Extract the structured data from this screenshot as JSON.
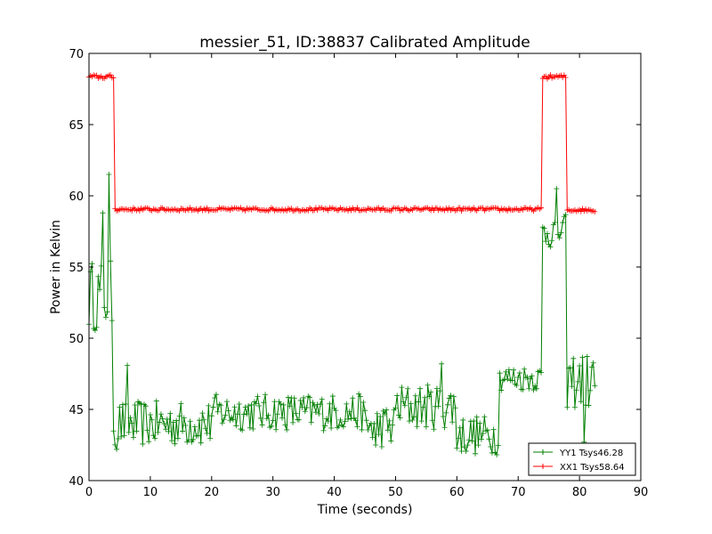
{
  "chart_data": {
    "type": "line",
    "title": "messier_51, ID:38837 Calibrated Amplitude",
    "xlabel": "Time (seconds)",
    "ylabel": "Power in Kelvin",
    "xlim": [
      0,
      90
    ],
    "ylim": [
      40,
      70
    ],
    "xticks": [
      0,
      10,
      20,
      30,
      40,
      50,
      60,
      70,
      80,
      90
    ],
    "yticks": [
      40,
      45,
      50,
      55,
      60,
      65,
      70
    ],
    "grid": false,
    "legend_position": "lower-right",
    "x_step": 0.25,
    "x_end": 82.5,
    "series": [
      {
        "name": "YY1 Tsys46.28",
        "color": "#007f00",
        "marker": "plus",
        "segments": [
          {
            "x_from": 0,
            "x_to": 4,
            "mean": 53.0,
            "spread": 2.5
          },
          {
            "x_from": 4,
            "x_to": 20,
            "mean": 44.0,
            "spread": 1.6
          },
          {
            "x_from": 20,
            "x_to": 45,
            "mean": 44.8,
            "spread": 1.3
          },
          {
            "x_from": 45,
            "x_to": 50,
            "mean": 43.8,
            "spread": 1.5
          },
          {
            "x_from": 50,
            "x_to": 60,
            "mean": 45.2,
            "spread": 1.6
          },
          {
            "x_from": 60,
            "x_to": 67,
            "mean": 43.2,
            "spread": 1.4
          },
          {
            "x_from": 67,
            "x_to": 74,
            "mean": 47.2,
            "spread": 0.9
          },
          {
            "x_from": 74,
            "x_to": 78,
            "mean": 57.5,
            "spread": 1.2
          },
          {
            "x_from": 78,
            "x_to": 82.5,
            "mean": 47.0,
            "spread": 2.0
          }
        ],
        "spikes": [
          {
            "x": 2.25,
            "y": 58.8
          },
          {
            "x": 3.25,
            "y": 61.5
          },
          {
            "x": 4.5,
            "y": 42.2
          },
          {
            "x": 6.25,
            "y": 48.1
          },
          {
            "x": 46.75,
            "y": 42.5
          },
          {
            "x": 57.5,
            "y": 48.2
          },
          {
            "x": 76.25,
            "y": 60.5
          },
          {
            "x": 80.75,
            "y": 42.7
          },
          {
            "x": 81.0,
            "y": 45.3
          }
        ]
      },
      {
        "name": "XX1 Tsys58.64",
        "color": "#ff0000",
        "marker": "plus",
        "segments": [
          {
            "x_from": 0,
            "x_to": 4.25,
            "mean": 68.35,
            "spread": 0.15
          },
          {
            "x_from": 4.25,
            "x_to": 74,
            "mean": 59.05,
            "spread": 0.12
          },
          {
            "x_from": 74,
            "x_to": 78,
            "mean": 68.35,
            "spread": 0.15
          },
          {
            "x_from": 78,
            "x_to": 82.5,
            "mean": 59.0,
            "spread": 0.12
          }
        ],
        "spikes": []
      }
    ]
  }
}
